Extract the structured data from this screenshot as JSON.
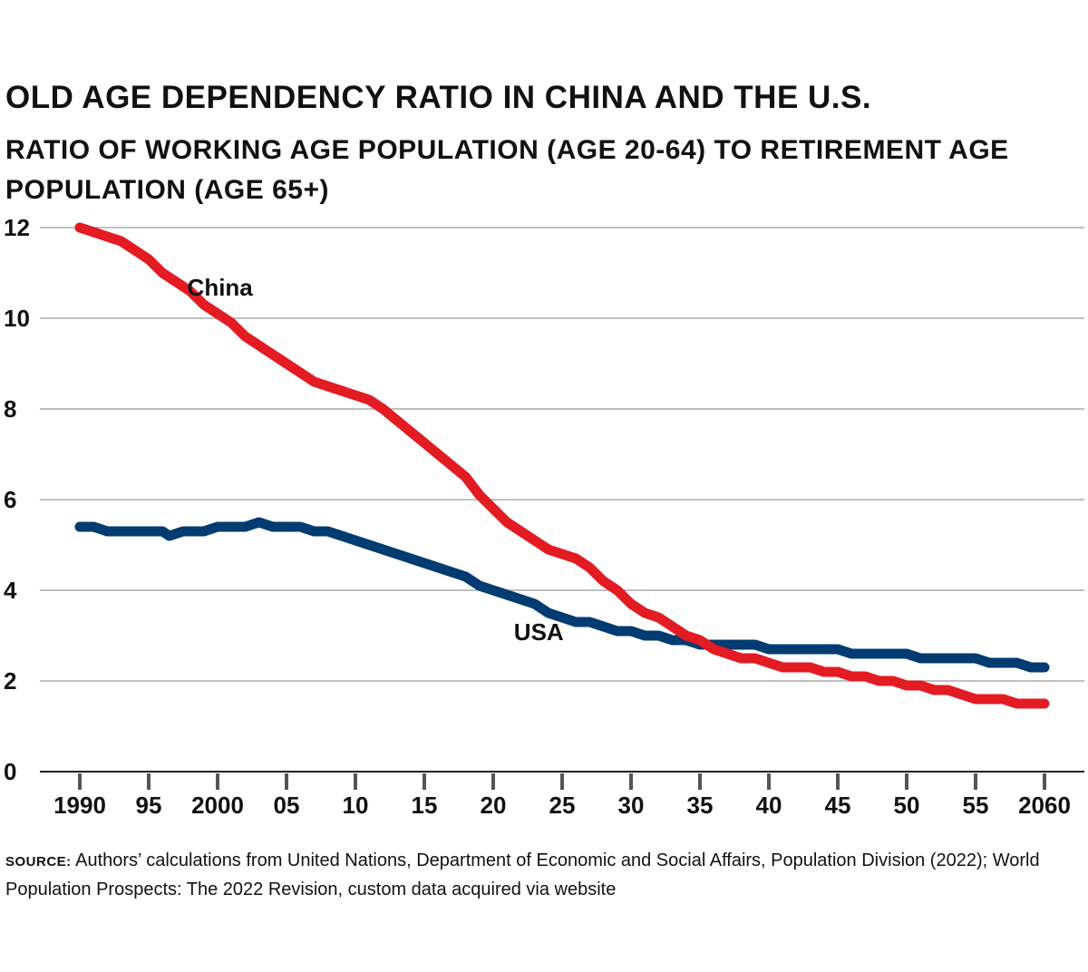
{
  "chart_data": {
    "type": "line",
    "title": "OLD AGE DEPENDENCY RATIO IN CHINA AND THE U.S.",
    "subtitle": "RATIO OF WORKING AGE POPULATION (AGE 20-64) TO RETIREMENT AGE POPULATION (AGE 65+)",
    "xlabel": "",
    "ylabel": "",
    "xlim": [
      1990,
      2060
    ],
    "ylim": [
      0,
      12
    ],
    "grid": true,
    "y_ticks": [
      0,
      2,
      4,
      6,
      8,
      10,
      12
    ],
    "x_ticks": [
      {
        "value": 1990,
        "label": "1990"
      },
      {
        "value": 1995,
        "label": "95"
      },
      {
        "value": 2000,
        "label": "2000"
      },
      {
        "value": 2005,
        "label": "05"
      },
      {
        "value": 2010,
        "label": "10"
      },
      {
        "value": 2015,
        "label": "15"
      },
      {
        "value": 2020,
        "label": "20"
      },
      {
        "value": 2025,
        "label": "25"
      },
      {
        "value": 2030,
        "label": "30"
      },
      {
        "value": 2035,
        "label": "35"
      },
      {
        "value": 2040,
        "label": "40"
      },
      {
        "value": 2045,
        "label": "45"
      },
      {
        "value": 2050,
        "label": "50"
      },
      {
        "value": 2055,
        "label": "55"
      },
      {
        "value": 2060,
        "label": "2060"
      }
    ],
    "series": [
      {
        "name": "China",
        "color": "#e31b23",
        "label_x": 1997.8,
        "label_y": 10.5,
        "points": [
          [
            1990,
            12.0
          ],
          [
            1991,
            11.9
          ],
          [
            1993,
            11.7
          ],
          [
            1995,
            11.3
          ],
          [
            1996,
            11.0
          ],
          [
            1998,
            10.6
          ],
          [
            1999,
            10.3
          ],
          [
            2001,
            9.9
          ],
          [
            2002,
            9.6
          ],
          [
            2004,
            9.2
          ],
          [
            2006,
            8.8
          ],
          [
            2007,
            8.6
          ],
          [
            2009,
            8.4
          ],
          [
            2011,
            8.2
          ],
          [
            2012,
            8.0
          ],
          [
            2014,
            7.5
          ],
          [
            2016,
            7.0
          ],
          [
            2018,
            6.5
          ],
          [
            2019,
            6.1
          ],
          [
            2020,
            5.8
          ],
          [
            2021,
            5.5
          ],
          [
            2023,
            5.1
          ],
          [
            2024,
            4.9
          ],
          [
            2026,
            4.7
          ],
          [
            2027,
            4.5
          ],
          [
            2028,
            4.2
          ],
          [
            2029,
            4.0
          ],
          [
            2030,
            3.7
          ],
          [
            2031,
            3.5
          ],
          [
            2032,
            3.4
          ],
          [
            2034,
            3.0
          ],
          [
            2035,
            2.9
          ],
          [
            2036,
            2.7
          ],
          [
            2038,
            2.5
          ],
          [
            2039,
            2.5
          ],
          [
            2041,
            2.3
          ],
          [
            2043,
            2.3
          ],
          [
            2044,
            2.2
          ],
          [
            2045,
            2.2
          ],
          [
            2046,
            2.1
          ],
          [
            2047,
            2.1
          ],
          [
            2048,
            2.0
          ],
          [
            2049,
            2.0
          ],
          [
            2050,
            1.9
          ],
          [
            2051,
            1.9
          ],
          [
            2052,
            1.8
          ],
          [
            2053,
            1.8
          ],
          [
            2055,
            1.6
          ],
          [
            2057,
            1.6
          ],
          [
            2058,
            1.5
          ],
          [
            2060,
            1.5
          ]
        ]
      },
      {
        "name": "USA",
        "color": "#003b71",
        "label_x": 2021.5,
        "label_y": 2.9,
        "points": [
          [
            1990,
            5.4
          ],
          [
            1991,
            5.4
          ],
          [
            1992,
            5.3
          ],
          [
            1994,
            5.3
          ],
          [
            1996,
            5.3
          ],
          [
            1996.5,
            5.2
          ],
          [
            1997.5,
            5.3
          ],
          [
            1999,
            5.3
          ],
          [
            2000,
            5.4
          ],
          [
            2002,
            5.4
          ],
          [
            2003,
            5.5
          ],
          [
            2004,
            5.4
          ],
          [
            2006,
            5.4
          ],
          [
            2007,
            5.3
          ],
          [
            2008,
            5.3
          ],
          [
            2010,
            5.1
          ],
          [
            2012,
            4.9
          ],
          [
            2014,
            4.7
          ],
          [
            2016,
            4.5
          ],
          [
            2018,
            4.3
          ],
          [
            2019,
            4.1
          ],
          [
            2021,
            3.9
          ],
          [
            2023,
            3.7
          ],
          [
            2024,
            3.5
          ],
          [
            2026,
            3.3
          ],
          [
            2027,
            3.3
          ],
          [
            2029,
            3.1
          ],
          [
            2030,
            3.1
          ],
          [
            2031,
            3.0
          ],
          [
            2032,
            3.0
          ],
          [
            2033,
            2.9
          ],
          [
            2034,
            2.9
          ],
          [
            2035,
            2.8
          ],
          [
            2037,
            2.8
          ],
          [
            2039,
            2.8
          ],
          [
            2040,
            2.7
          ],
          [
            2042,
            2.7
          ],
          [
            2045,
            2.7
          ],
          [
            2046,
            2.6
          ],
          [
            2048,
            2.6
          ],
          [
            2050,
            2.6
          ],
          [
            2051,
            2.5
          ],
          [
            2053,
            2.5
          ],
          [
            2055,
            2.5
          ],
          [
            2056,
            2.4
          ],
          [
            2058,
            2.4
          ],
          [
            2059,
            2.3
          ],
          [
            2060,
            2.3
          ]
        ]
      }
    ]
  },
  "source": {
    "label": "SOURCE:",
    "text": "Authors’ calculations from United Nations, Department of Economic and Social Affairs, Population Division (2022); World Population Prospects: The 2022 Revision, custom data acquired via website"
  }
}
